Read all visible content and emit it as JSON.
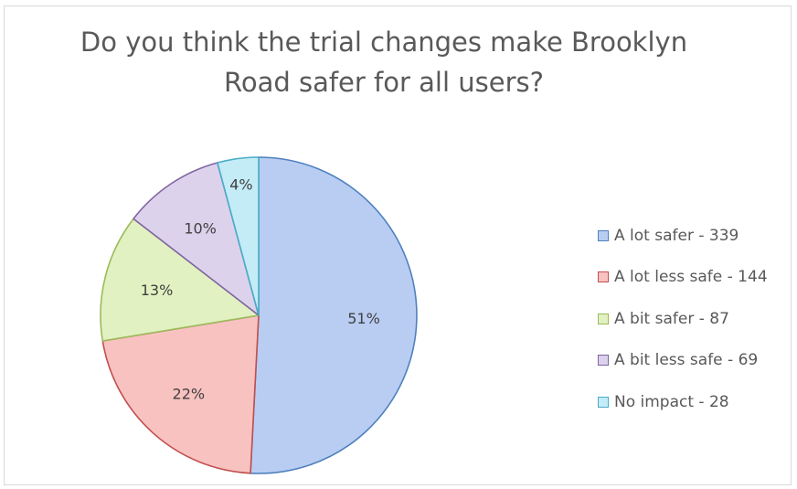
{
  "chart_data": {
    "type": "pie",
    "title_lines": [
      "Do you think the trial changes make Brooklyn",
      "Road safer for all users?"
    ],
    "slices": [
      {
        "legend": "A lot safer - 339",
        "percent_label": "51%",
        "value": 339,
        "fill": "#b9cdf3",
        "stroke": "#4f81bd"
      },
      {
        "legend": "A lot less safe - 144",
        "percent_label": "22%",
        "value": 144,
        "fill": "#f8c2c1",
        "stroke": "#c0504d"
      },
      {
        "legend": "A bit safer - 87",
        "percent_label": "13%",
        "value": 87,
        "fill": "#e1f1c2",
        "stroke": "#9bbb59"
      },
      {
        "legend": "A bit less safe - 69",
        "percent_label": "10%",
        "value": 69,
        "fill": "#dcd2ec",
        "stroke": "#8064a2"
      },
      {
        "legend": "No impact - 28",
        "percent_label": "4%",
        "value": 28,
        "fill": "#c4ecf7",
        "stroke": "#4bacc6"
      }
    ],
    "legend_position": "right"
  }
}
